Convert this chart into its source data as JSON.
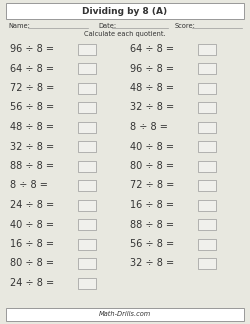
{
  "title": "Dividing by 8 (A)",
  "name_label": "Name:",
  "date_label": "Date:",
  "score_label": "Score:",
  "instruction": "Calculate each quotient.",
  "footer": "Math-Drills.com",
  "left_col": [
    "96 ÷ 8 =",
    "64 ÷ 8 =",
    "72 ÷ 8 =",
    "56 ÷ 8 =",
    "48 ÷ 8 =",
    "32 ÷ 8 =",
    "88 ÷ 8 =",
    "8 ÷ 8 =",
    "24 ÷ 8 =",
    "40 ÷ 8 =",
    "16 ÷ 8 =",
    "80 ÷ 8 =",
    "24 ÷ 8 ="
  ],
  "right_col": [
    "64 ÷ 8 =",
    "96 ÷ 8 =",
    "48 ÷ 8 =",
    "32 ÷ 8 =",
    "8 ÷ 8 =",
    "40 ÷ 8 =",
    "80 ÷ 8 =",
    "72 ÷ 8 =",
    "16 ÷ 8 =",
    "88 ÷ 8 =",
    "56 ÷ 8 =",
    "32 ÷ 8 ="
  ],
  "bg_color": "#e8e8e0",
  "box_color": "#f0f0ec",
  "border_color": "#999999",
  "text_color": "#333333",
  "title_box_color": "#ffffff",
  "footer_box_color": "#ffffff"
}
